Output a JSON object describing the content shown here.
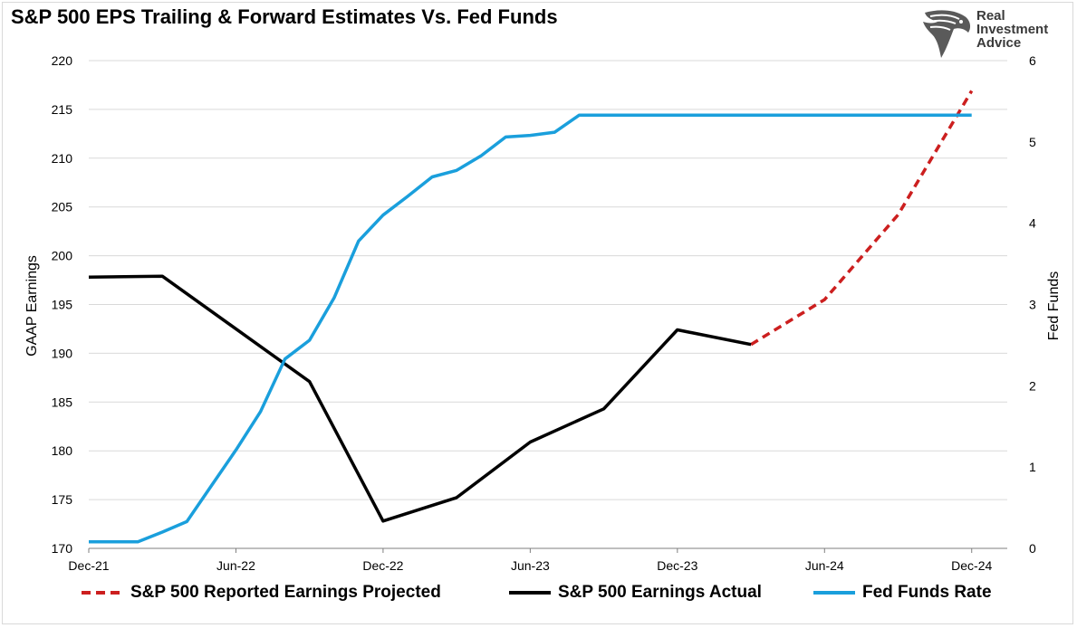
{
  "title": "S&P 500 EPS Trailing & Forward Estimates Vs. Fed Funds",
  "brand": {
    "line1": "Real",
    "line2": "Investment",
    "line3": "Advice"
  },
  "chart_data": {
    "type": "line",
    "title": "S&P 500 EPS Trailing & Forward Estimates Vs. Fed Funds",
    "xlabel": "",
    "ylabel": "GAAP Earnings",
    "y2label": "Fed Funds",
    "ylim": [
      170,
      220
    ],
    "y2lim": [
      0,
      6
    ],
    "xlim": [
      "2021-12",
      "2025-01"
    ],
    "x_ticks": [
      "Dec-21",
      "Jun-22",
      "Dec-22",
      "Jun-23",
      "Dec-23",
      "Jun-24",
      "Dec-24"
    ],
    "y_ticks": [
      170,
      175,
      180,
      185,
      190,
      195,
      200,
      205,
      210,
      215,
      220
    ],
    "y2_ticks": [
      0,
      1,
      2,
      3,
      4,
      5,
      6
    ],
    "grid": "horizontal",
    "legend_position": "bottom",
    "series": [
      {
        "name": "S&P 500 Reported Earnings Projected",
        "axis": "left",
        "color": "#cc1f1f",
        "style": "dashed",
        "x": [
          "2024-03",
          "2024-06",
          "2024-09",
          "2024-12"
        ],
        "y": [
          190.9,
          195.5,
          204.2,
          216.9
        ]
      },
      {
        "name": "S&P 500 Earnings Actual",
        "axis": "left",
        "color": "#000000",
        "style": "solid",
        "x": [
          "2021-12",
          "2022-03",
          "2022-09",
          "2022-12",
          "2023-03",
          "2023-06",
          "2023-09",
          "2023-12",
          "2024-03"
        ],
        "y": [
          197.8,
          197.9,
          187.1,
          172.8,
          175.2,
          180.9,
          184.3,
          192.4,
          190.9
        ]
      },
      {
        "name": "Fed Funds Rate",
        "axis": "right",
        "color": "#1a9fdc",
        "style": "solid",
        "x": [
          "2021-12",
          "2022-01",
          "2022-02",
          "2022-03",
          "2022-04",
          "2022-05",
          "2022-06",
          "2022-07",
          "2022-08",
          "2022-09",
          "2022-10",
          "2022-11",
          "2022-12",
          "2023-01",
          "2023-02",
          "2023-03",
          "2023-04",
          "2023-05",
          "2023-06",
          "2023-07",
          "2023-08",
          "2023-09",
          "2023-10",
          "2023-11",
          "2023-12",
          "2024-01",
          "2024-02",
          "2024-03",
          "2024-04",
          "2024-05",
          "2024-06",
          "2024-07",
          "2024-08",
          "2024-09",
          "2024-10",
          "2024-11",
          "2024-12"
        ],
        "y": [
          0.08,
          0.08,
          0.08,
          0.2,
          0.33,
          0.77,
          1.21,
          1.68,
          2.33,
          2.56,
          3.08,
          3.78,
          4.1,
          4.33,
          4.57,
          4.65,
          4.83,
          5.06,
          5.08,
          5.12,
          5.33,
          5.33,
          5.33,
          5.33,
          5.33,
          5.33,
          5.33,
          5.33,
          5.33,
          5.33,
          5.33,
          5.33,
          5.33,
          5.33,
          5.33,
          5.33,
          5.33
        ]
      }
    ]
  }
}
